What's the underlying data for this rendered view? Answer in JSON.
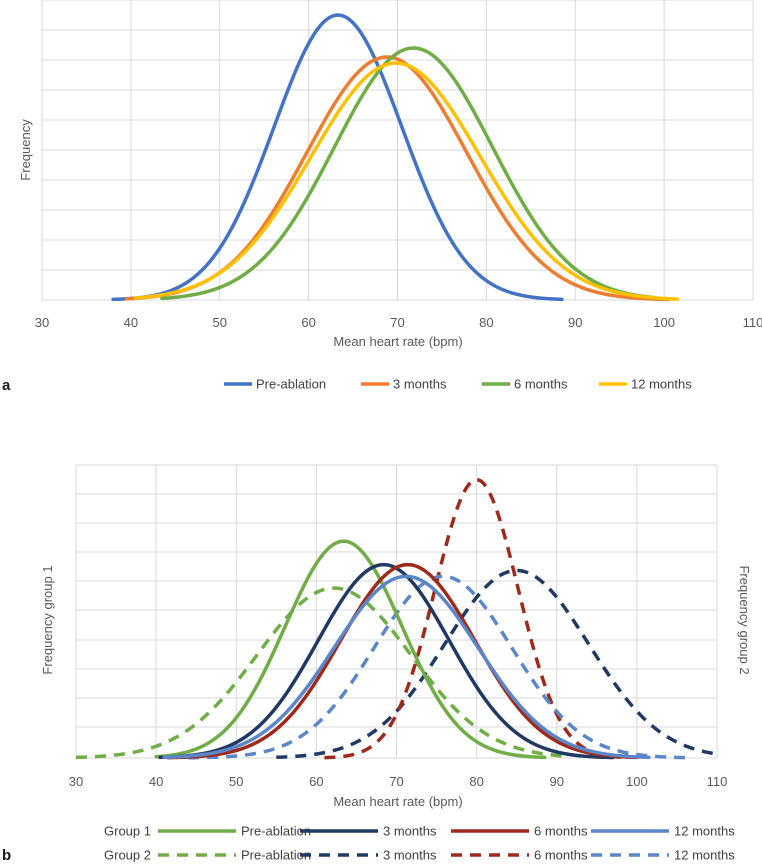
{
  "chart_data": [
    {
      "panel": "a",
      "type": "line",
      "xlabel": "Mean heart rate (bpm)",
      "ylabel": "Frequency",
      "xlim": [
        30,
        110
      ],
      "xticks": [
        "30",
        "40",
        "50",
        "60",
        "70",
        "80",
        "90",
        "100",
        "110"
      ],
      "legend_position": "bottom",
      "series": [
        {
          "name": "Pre-ablation",
          "color": "#4472c4",
          "style": "solid",
          "mean": 63.3,
          "sd": 7.2,
          "peak": 0.95,
          "range": [
            38,
            88.5
          ]
        },
        {
          "name": "3 months",
          "color": "#ed7d31",
          "style": "solid",
          "mean": 68.8,
          "sd": 9.0,
          "peak": 0.81,
          "range": [
            39.5,
            100.5
          ]
        },
        {
          "name": "6 months",
          "color": "#70ad47",
          "style": "solid",
          "mean": 71.8,
          "sd": 8.9,
          "peak": 0.84,
          "range": [
            43.5,
            99
          ]
        },
        {
          "name": "12 months",
          "color": "#ffc000",
          "style": "solid",
          "mean": 69.8,
          "sd": 9.5,
          "peak": 0.79,
          "range": [
            40.5,
            101.5
          ]
        }
      ]
    },
    {
      "panel": "b",
      "type": "line",
      "xlabel": "Mean heart rate (bpm)",
      "ylabel": "Frequency group 1",
      "ylabel_right": "Frequency group 2",
      "xlim": [
        30,
        110
      ],
      "xticks": [
        "30",
        "40",
        "50",
        "60",
        "70",
        "80",
        "90",
        "100",
        "110"
      ],
      "legend_position": "bottom",
      "legend_groups": [
        "Group 1",
        "Group 2"
      ],
      "series": [
        {
          "group": "Group 1",
          "name": "Pre-ablation",
          "color": "#70ad47",
          "style": "solid",
          "mean": 63.4,
          "sd": 7.3,
          "peak": 0.74,
          "range": [
            40,
            88.5
          ]
        },
        {
          "group": "Group 1",
          "name": "3 months",
          "color": "#203864",
          "style": "solid",
          "mean": 68.4,
          "sd": 8.2,
          "peak": 0.66,
          "range": [
            40.5,
            97
          ]
        },
        {
          "group": "Group 1",
          "name": "6 months",
          "color": "#9e2a1c",
          "style": "solid",
          "mean": 71.4,
          "sd": 8.4,
          "peak": 0.66,
          "range": [
            41.5,
            100
          ]
        },
        {
          "group": "Group 1",
          "name": "12 months",
          "color": "#5b86c8",
          "style": "solid",
          "mean": 71.2,
          "sd": 9.0,
          "peak": 0.62,
          "range": [
            41,
            101.5
          ]
        },
        {
          "group": "Group 2",
          "name": "Pre-ablation",
          "color": "#70ad47",
          "style": "dashed",
          "mean": 62.2,
          "sd": 9.6,
          "peak": 0.58,
          "range": [
            30,
            91
          ]
        },
        {
          "group": "Group 2",
          "name": "3 months",
          "color": "#203864",
          "style": "dashed",
          "mean": 85.0,
          "sd": 9.0,
          "peak": 0.64,
          "range": [
            55,
            110
          ]
        },
        {
          "group": "Group 2",
          "name": "6 months",
          "color": "#9e2a1c",
          "style": "dashed",
          "mean": 80.0,
          "sd": 5.2,
          "peak": 0.95,
          "range": [
            61,
            98
          ]
        },
        {
          "group": "Group 2",
          "name": "12 months",
          "color": "#5b86c8",
          "style": "dashed",
          "mean": 75.8,
          "sd": 8.6,
          "peak": 0.62,
          "range": [
            44,
            106
          ]
        }
      ]
    }
  ]
}
